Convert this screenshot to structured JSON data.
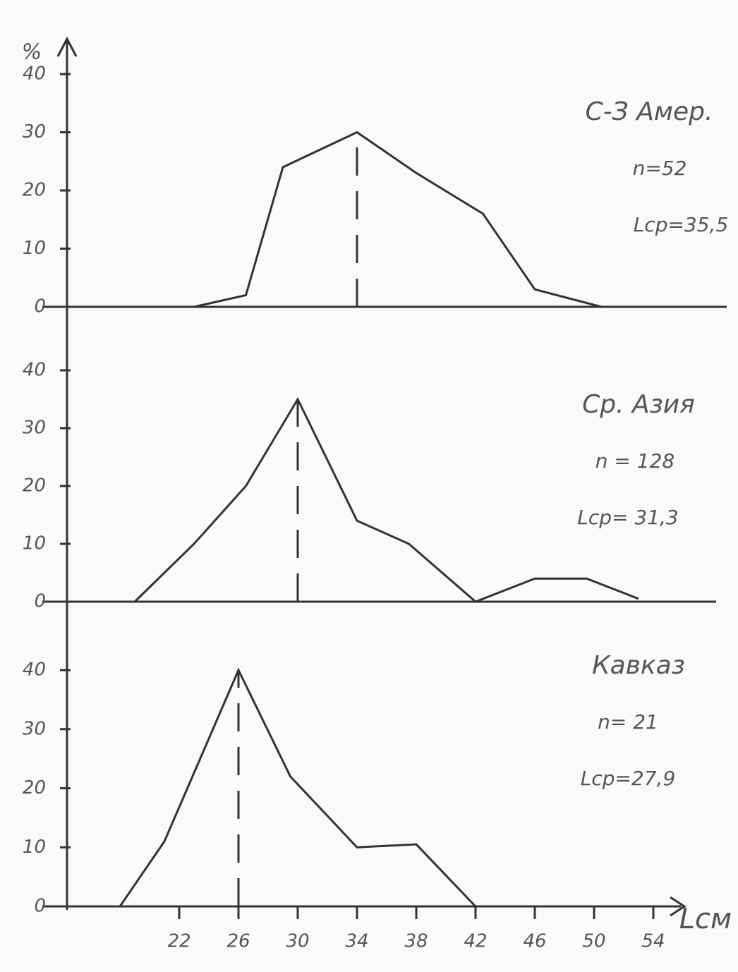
{
  "chart_data": [
    {
      "type": "line",
      "ylabel": "%",
      "annotations": [
        "С-З Амер.",
        "n=52",
        "Lср=35,5"
      ],
      "x": [
        23,
        26.5,
        29,
        34,
        38,
        42.5,
        46,
        50.5
      ],
      "values": [
        0,
        2,
        24,
        30,
        23,
        16,
        3,
        0
      ],
      "reference_x": 34,
      "xlim": [
        18,
        54
      ],
      "ylim": [
        0,
        40
      ],
      "yticks": [
        0,
        10,
        20,
        30,
        40
      ]
    },
    {
      "type": "line",
      "annotations": [
        "Ср. Азия",
        "n = 128",
        "Lср= 31,3"
      ],
      "x": [
        19,
        23,
        26.5,
        30,
        34,
        37.5,
        42,
        46,
        49.5,
        53
      ],
      "values": [
        0,
        10,
        20,
        35,
        14,
        10,
        0,
        4,
        4,
        0.5
      ],
      "reference_x": 30,
      "xlim": [
        18,
        54
      ],
      "ylim": [
        0,
        40
      ],
      "yticks": [
        0,
        10,
        20,
        30,
        40
      ]
    },
    {
      "type": "line",
      "annotations": [
        "Кавказ",
        "n= 21",
        "Lср=27,9"
      ],
      "xlabel": "Lсм",
      "x": [
        18,
        21,
        26,
        29.5,
        34,
        38,
        42
      ],
      "values": [
        0,
        11,
        40,
        22,
        10,
        10.5,
        0
      ],
      "reference_x": 26,
      "xlim": [
        18,
        54
      ],
      "ylim": [
        0,
        40
      ],
      "yticks": [
        0,
        10,
        20,
        30,
        40
      ],
      "xticks": [
        22,
        26,
        30,
        34,
        38,
        42,
        46,
        50,
        54
      ]
    }
  ]
}
